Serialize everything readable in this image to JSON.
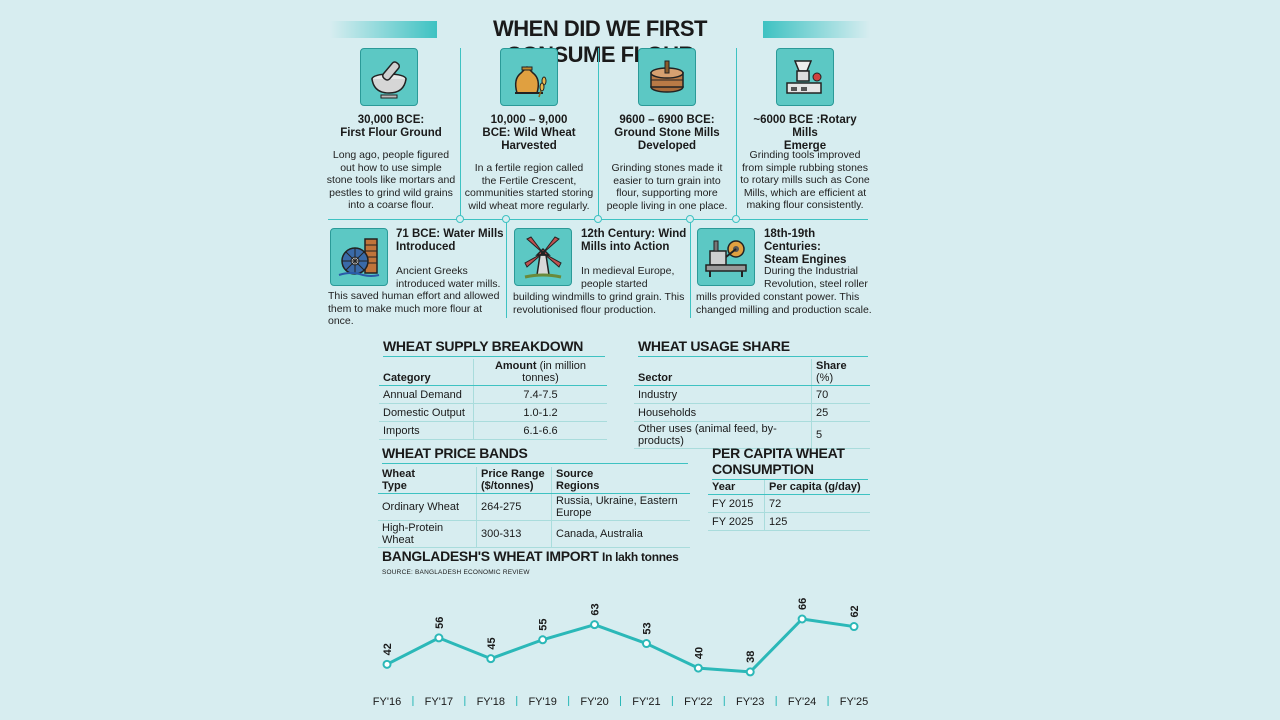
{
  "title": "WHEN DID WE FIRST CONSUME FLOUR",
  "timeline": {
    "top": [
      {
        "heading_1": "30,000 BCE:",
        "heading_2": "First Flour Ground",
        "body": [
          "Long ago, people figured",
          "out how to use simple",
          "stone tools like mortars and",
          "pestles to grind wild grains",
          "into a coarse flour."
        ]
      },
      {
        "heading_1": "10,000 – 9,000",
        "heading_2": "BCE: Wild Wheat",
        "heading_3": "Harvested",
        "body": [
          "In a fertile region called",
          "the Fertile Crescent,",
          "communities started storing",
          "wild wheat more regularly."
        ]
      },
      {
        "heading_1": "9600 – 6900 BCE:",
        "heading_2": "Ground Stone Mills",
        "heading_3": "Developed",
        "body": [
          "Grinding stones made it",
          "easier to turn grain into",
          "flour, supporting more",
          "people living in one place."
        ]
      },
      {
        "heading_1": "~6000 BCE :Rotary Mills",
        "heading_2": "Emerge",
        "body": [
          "Grinding tools improved",
          "from simple rubbing stones",
          "to rotary mills such as Cone",
          "Mills, which are efficient at",
          "making flour consistently."
        ]
      }
    ],
    "bottom": [
      {
        "heading_1": "71 BCE: Water Mills",
        "heading_2": "Introduced",
        "body": [
          "Ancient Greeks",
          "introduced water mills.",
          "This saved human effort and allowed",
          "them to make much more flour at once."
        ]
      },
      {
        "heading_1": "12th Century: Wind",
        "heading_2": "Mills into Action",
        "body": [
          "In medieval Europe,",
          "people started",
          "building windmills to grind grain. This",
          "revolutionised flour production."
        ]
      },
      {
        "heading_1": "18th-19th Centuries:",
        "heading_2": "Steam Engines",
        "body": [
          "During the Industrial",
          "Revolution, steel roller",
          "mills provided constant power. This",
          "changed milling and production scale."
        ]
      }
    ]
  },
  "supply": {
    "title": "WHEAT SUPPLY BREAKDOWN",
    "col1": "Category",
    "col2": "Amount",
    "col2_unit": "(in million tonnes)",
    "rows": [
      [
        "Annual Demand",
        "7.4-7.5"
      ],
      [
        "Domestic Output",
        "1.0-1.2"
      ],
      [
        "Imports",
        "6.1-6.6"
      ]
    ]
  },
  "usage": {
    "title": "WHEAT USAGE SHARE",
    "col1": "Sector",
    "col2": "Share",
    "col2_unit": "(%)",
    "rows": [
      [
        "Industry",
        "70"
      ],
      [
        "Households",
        "25"
      ],
      [
        "Other uses (animal feed, by-products)",
        "5"
      ]
    ]
  },
  "price": {
    "title": "WHEAT PRICE BANDS",
    "col1_a": "Wheat",
    "col1_b": "Type",
    "col2_a": "Price Range",
    "col2_b": "($/tonnes)",
    "col3_a": "Source",
    "col3_b": "Regions",
    "rows": [
      [
        "Ordinary Wheat",
        "264-275",
        "Russia, Ukraine, Eastern Europe"
      ],
      [
        "High-Protein Wheat",
        "300-313",
        "Canada, Australia"
      ]
    ]
  },
  "percapita": {
    "title_1": "PER CAPITA WHEAT",
    "title_2": "CONSUMPTION",
    "col1": "Year",
    "col2": "Per capita (g/day)",
    "rows": [
      [
        "FY 2015",
        "72"
      ],
      [
        "FY 2025",
        "125"
      ]
    ]
  },
  "chart_title": "BANGLADESH'S WHEAT IMPORT",
  "chart_unit": "In lakh tonnes",
  "source": "SOURCE: BANGLADESH ECONOMIC REVIEW",
  "chart_data": {
    "type": "line",
    "title": "BANGLADESH'S WHEAT IMPORT",
    "ylabel": "In lakh tonnes",
    "categories": [
      "FY'16",
      "FY'17",
      "FY'18",
      "FY'19",
      "FY'20",
      "FY'21",
      "FY'22",
      "FY'23",
      "FY'24",
      "FY'25"
    ],
    "values": [
      42,
      56,
      45,
      55,
      63,
      53,
      40,
      38,
      66,
      62
    ],
    "ylim": [
      30,
      75
    ],
    "grid": false,
    "legend": "none",
    "line_color": "#2bb8b8"
  },
  "colors": {
    "accent": "#3ec2c2",
    "background": "#d7edf0",
    "icon_bg": "#5cc8c4"
  },
  "icons": [
    "mortar-pestle-icon",
    "wheat-sack-icon",
    "stone-mill-icon",
    "rotary-mill-icon",
    "water-wheel-icon",
    "windmill-icon",
    "steam-engine-icon"
  ]
}
